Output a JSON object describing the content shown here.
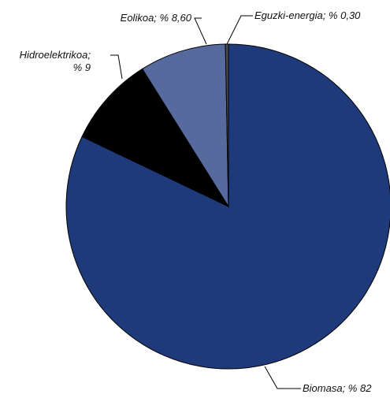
{
  "chart_data": {
    "type": "pie",
    "slices": [
      {
        "name": "Biomasa",
        "value": 82,
        "label": "Biomasa; % 82",
        "color": "#1e3a7a"
      },
      {
        "name": "Hidroelektrikoa",
        "value": 9,
        "label_lines": [
          "Hidroelektrikoa;",
          "% 9"
        ],
        "color": "#000000"
      },
      {
        "name": "Eolikoa",
        "value": 8.6,
        "label": "Eolikoa; % 8,60",
        "color": "#566a9e"
      },
      {
        "name": "Eguzki-energia",
        "value": 0.3,
        "label": "Eguzki-energia; % 0,30",
        "color": "#4d4d4d"
      }
    ],
    "start": "12 o'clock",
    "direction": "clockwise",
    "legend": "none (leader-line labels)"
  }
}
